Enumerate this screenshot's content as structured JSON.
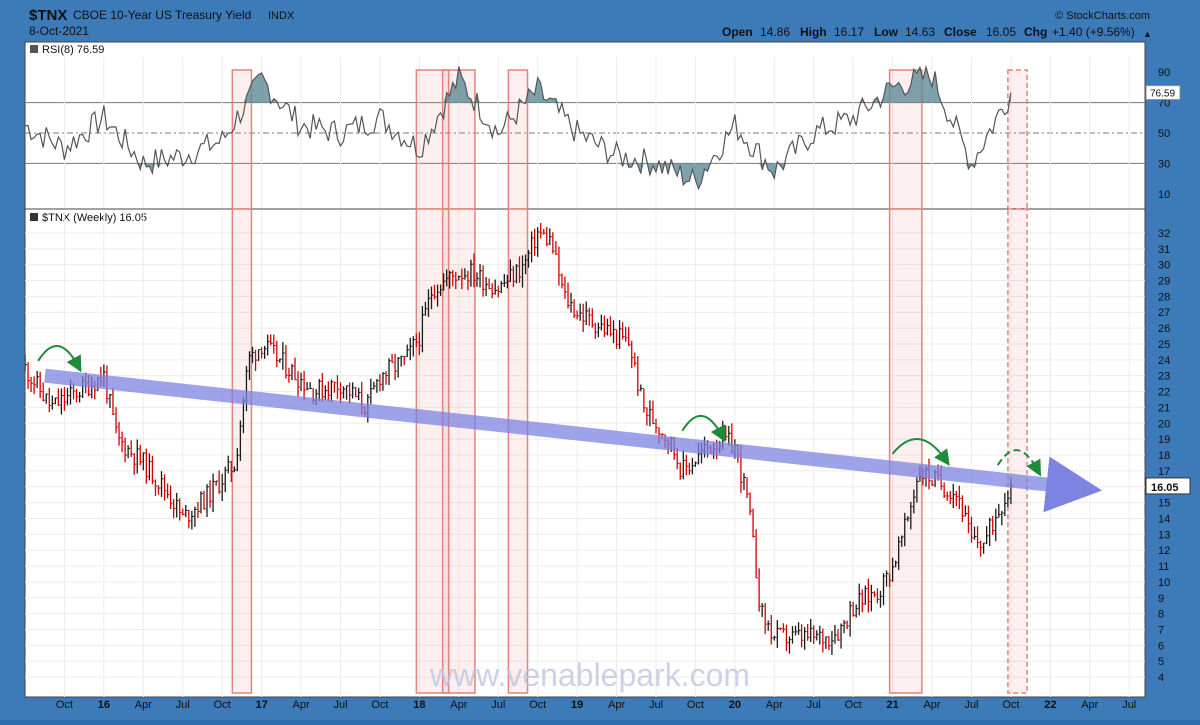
{
  "header": {
    "symbol": "$TNX",
    "name": "CBOE 10-Year US Treasury Yield",
    "exchange": "INDX",
    "date": "8-Oct-2021",
    "source": "© StockCharts.com",
    "quote": {
      "open_label": "Open",
      "open": "14.86",
      "high_label": "High",
      "high": "16.17",
      "low_label": "Low",
      "low": "14.63",
      "close_label": "Close",
      "close": "16.05",
      "chg_label": "Chg",
      "chg": "+1.40 (+9.56%)"
    }
  },
  "watermark": "www.venablepark.com",
  "chart_data": [
    {
      "type": "line",
      "panel": "indicator",
      "title": "RSI(8) 76.59",
      "ylim": [
        0,
        100
      ],
      "yticks": [
        10,
        30,
        50,
        70,
        90
      ],
      "reference_lines": [
        30,
        50,
        70
      ],
      "last_value_label": "76.59",
      "last_value": 76.59,
      "x": [
        "2015-07",
        "2015-10",
        "2016-01",
        "2016-04",
        "2016-07",
        "2016-10",
        "2017-01",
        "2017-04",
        "2017-07",
        "2017-10",
        "2018-01",
        "2018-04",
        "2018-07",
        "2018-10",
        "2019-01",
        "2019-04",
        "2019-07",
        "2019-10",
        "2020-01",
        "2020-04",
        "2020-07",
        "2020-10",
        "2021-01",
        "2021-04",
        "2021-07",
        "2021-10"
      ],
      "series": [
        {
          "values": [
            55,
            40,
            60,
            30,
            35,
            45,
            85,
            55,
            50,
            60,
            40,
            86,
            50,
            78,
            50,
            35,
            30,
            18,
            55,
            25,
            50,
            60,
            80,
            88,
            30,
            76.59
          ]
        }
      ]
    },
    {
      "type": "line",
      "panel": "price",
      "title": "$TNX (Weekly) 16.05",
      "ylim": [
        3.5,
        32.5
      ],
      "yticks": [
        4,
        5,
        6,
        7,
        8,
        9,
        10,
        11,
        12,
        13,
        14,
        15,
        16,
        17,
        18,
        19,
        20,
        21,
        22,
        23,
        24,
        25,
        26,
        27,
        28,
        29,
        30,
        31,
        32
      ],
      "last_value_label": "16.05",
      "last_value": 16.05,
      "xticks": [
        {
          "label": "Oct",
          "date": "2015-10"
        },
        {
          "label": "16",
          "date": "2016-01"
        },
        {
          "label": "Apr",
          "date": "2016-04"
        },
        {
          "label": "Jul",
          "date": "2016-07"
        },
        {
          "label": "Oct",
          "date": "2016-10"
        },
        {
          "label": "17",
          "date": "2017-01"
        },
        {
          "label": "Apr",
          "date": "2017-04"
        },
        {
          "label": "Jul",
          "date": "2017-07"
        },
        {
          "label": "Oct",
          "date": "2017-10"
        },
        {
          "label": "18",
          "date": "2018-01"
        },
        {
          "label": "Apr",
          "date": "2018-04"
        },
        {
          "label": "Jul",
          "date": "2018-07"
        },
        {
          "label": "Oct",
          "date": "2018-10"
        },
        {
          "label": "19",
          "date": "2019-01"
        },
        {
          "label": "Apr",
          "date": "2019-04"
        },
        {
          "label": "Jul",
          "date": "2019-07"
        },
        {
          "label": "Oct",
          "date": "2019-10"
        },
        {
          "label": "20",
          "date": "2020-01"
        },
        {
          "label": "Apr",
          "date": "2020-04"
        },
        {
          "label": "Jul",
          "date": "2020-07"
        },
        {
          "label": "Oct",
          "date": "2020-10"
        },
        {
          "label": "21",
          "date": "2021-01"
        },
        {
          "label": "Apr",
          "date": "2021-04"
        },
        {
          "label": "Jul",
          "date": "2021-07"
        },
        {
          "label": "Oct",
          "date": "2021-10"
        },
        {
          "label": "22",
          "date": "2022-01"
        },
        {
          "label": "Apr",
          "date": "2022-04"
        },
        {
          "label": "Jul",
          "date": "2022-07"
        }
      ],
      "x": [
        "2015-07",
        "2015-09",
        "2015-11",
        "2016-01",
        "2016-02",
        "2016-04",
        "2016-06",
        "2016-07",
        "2016-09",
        "2016-11",
        "2016-12",
        "2017-01",
        "2017-03",
        "2017-05",
        "2017-07",
        "2017-09",
        "2017-10",
        "2017-12",
        "2018-01",
        "2018-02",
        "2018-04",
        "2018-05",
        "2018-07",
        "2018-09",
        "2018-10",
        "2018-11",
        "2018-12",
        "2019-01",
        "2019-03",
        "2019-05",
        "2019-06",
        "2019-08",
        "2019-09",
        "2019-11",
        "2019-12",
        "2020-01",
        "2020-02",
        "2020-03",
        "2020-04",
        "2020-06",
        "2020-08",
        "2020-09",
        "2020-10",
        "2020-12",
        "2021-01",
        "2021-02",
        "2021-03",
        "2021-04",
        "2021-05",
        "2021-06",
        "2021-07",
        "2021-08",
        "2021-09",
        "2021-10"
      ],
      "series": [
        {
          "values": [
            23.5,
            21,
            22,
            23,
            19,
            17.5,
            15.5,
            14,
            15.5,
            17.5,
            24,
            25,
            23.5,
            22,
            22.5,
            21,
            23,
            24,
            25.5,
            28.5,
            29.5,
            29.5,
            28.5,
            30,
            32,
            31.5,
            28,
            27,
            26,
            25,
            21,
            19,
            17,
            18.5,
            19,
            18.5,
            15,
            8,
            6.5,
            6.5,
            6.5,
            7,
            8.5,
            9.5,
            11,
            13.5,
            17,
            16.5,
            16,
            15.5,
            12.5,
            12.5,
            14.5,
            16.05
          ]
        }
      ],
      "annotations": {
        "trendline": {
          "from": {
            "x": "2015-07",
            "y": 23.0
          },
          "to": {
            "x": "2022-01",
            "y": 16.05
          }
        },
        "arcs": [
          {
            "from": "2015-08",
            "to": "2015-11",
            "dashed": false
          },
          {
            "from": "2019-09",
            "to": "2019-12",
            "dashed": false
          },
          {
            "from": "2021-01",
            "to": "2021-05",
            "dashed": false
          },
          {
            "from": "2021-09",
            "to": "2021-12",
            "dashed": true
          }
        ],
        "highlight_ranges": [
          {
            "from": "2016-11",
            "to": "2016-12",
            "dashed": false
          },
          {
            "from": "2018-01",
            "to": "2018-03",
            "dashed": false
          },
          {
            "from": "2018-03",
            "to": "2018-05",
            "dashed": false
          },
          {
            "from": "2018-08",
            "to": "2018-09",
            "dashed": false
          },
          {
            "from": "2021-01",
            "to": "2021-03",
            "dashed": false
          },
          {
            "from": "2021-10",
            "to": "2021-11",
            "dashed": true
          }
        ]
      }
    }
  ],
  "colors": {
    "up": "#1a1a1a",
    "down": "#d40000",
    "rsi_line": "#555555",
    "rsi_fill": "#5f8a96",
    "trend": "#7d83e0",
    "arc": "#1f8a3a",
    "highlight": "#e0857a",
    "frame": "#3c7ab8"
  }
}
